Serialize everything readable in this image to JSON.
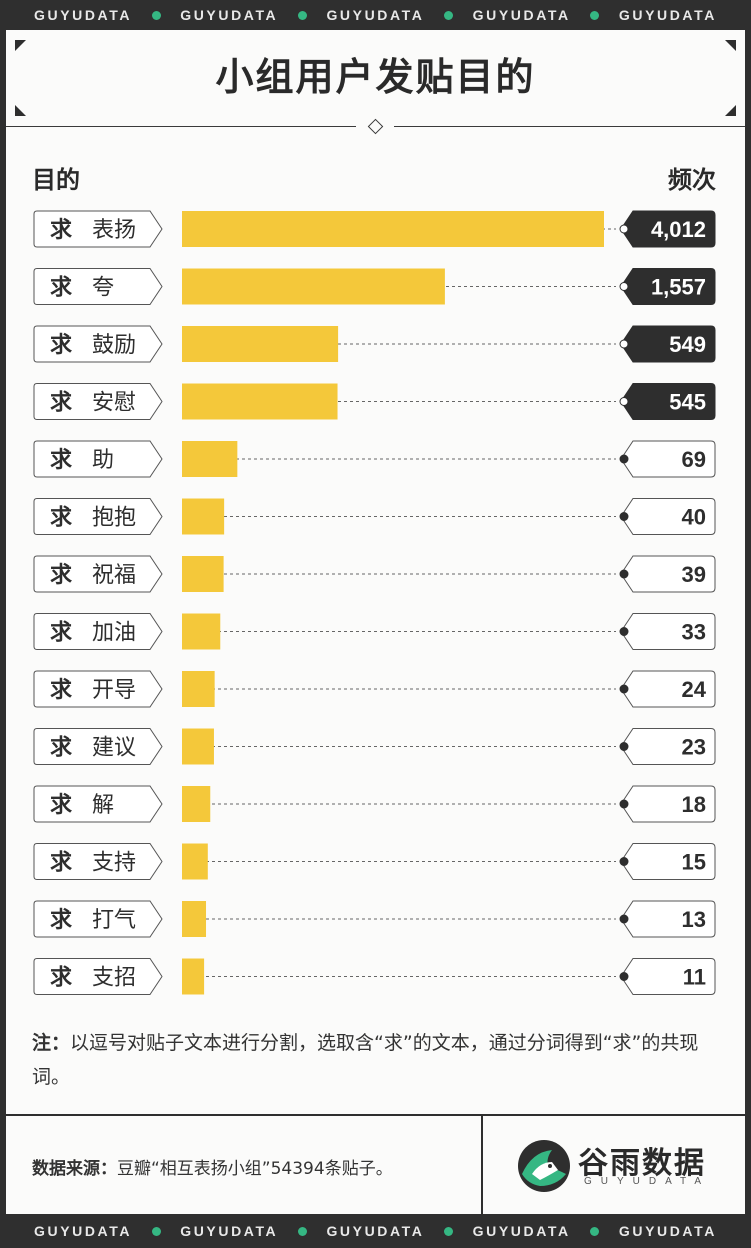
{
  "ticker": {
    "words": [
      "GUYUDATA",
      "GUYUDATA",
      "GUYUDATA",
      "GUYUDATA",
      "GUYUDATA"
    ]
  },
  "title": "小组用户发贴目的",
  "col_left": "目的",
  "col_right": "频次",
  "colors": {
    "bar": "#f4c83a",
    "dark_badge": "#2e2e2e",
    "accent_green": "#35b783"
  },
  "chart_data": {
    "type": "bar",
    "orientation": "horizontal",
    "categories": [
      "求 表扬",
      "求 夸",
      "求 鼓励",
      "求 安慰",
      "求 助",
      "求 抱抱",
      "求 祝福",
      "求 加油",
      "求 开导",
      "求 建议",
      "求 解",
      "求 支持",
      "求 打气",
      "求 支招"
    ],
    "values": [
      4012,
      1557,
      549,
      545,
      69,
      40,
      39,
      33,
      24,
      23,
      18,
      15,
      13,
      11
    ],
    "value_labels": [
      "4,012",
      "1,557",
      "549",
      "545",
      "69",
      "40",
      "39",
      "33",
      "24",
      "23",
      "18",
      "15",
      "13",
      "11"
    ],
    "highlighted": [
      true,
      true,
      true,
      true,
      false,
      false,
      false,
      false,
      false,
      false,
      false,
      false,
      false,
      false
    ],
    "bar_scale": "sqrt",
    "xlabel": "",
    "ylabel": ""
  },
  "note": {
    "label": "注：",
    "text": "以逗号对贴子文本进行分割，选取含“求”的文本，通过分词得到“求”的共现词。"
  },
  "source": {
    "label": "数据来源：",
    "text": "豆瓣“相互表扬小组”54394条贴子。"
  },
  "logo": {
    "name": "谷雨数据",
    "sub": "GUYUDATA"
  }
}
